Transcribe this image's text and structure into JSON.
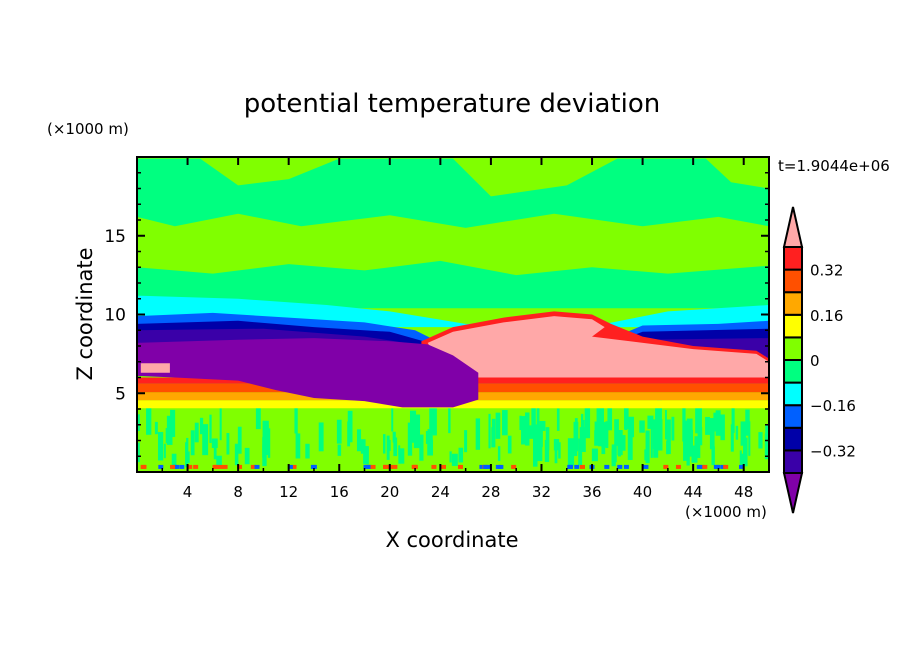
{
  "chart_data": {
    "type": "heatmap",
    "subtype": "filled-contour",
    "title": "potential temperature deviation",
    "xlabel": "X coordinate",
    "ylabel": "Z coordinate",
    "x_unit": "(×1000 m)",
    "y_unit": "(×1000 m)",
    "time_label": "t=1.9044e+06",
    "xlim": [
      0,
      50
    ],
    "ylim": [
      0,
      20
    ],
    "x_ticks": [
      4,
      8,
      12,
      16,
      20,
      24,
      28,
      32,
      36,
      40,
      44,
      48
    ],
    "x_tick_labels": [
      "4",
      "8",
      "12",
      "16",
      "20",
      "24",
      "28",
      "32",
      "36",
      "40",
      "44",
      "48"
    ],
    "y_ticks": [
      5,
      10,
      15
    ],
    "y_tick_labels": [
      "5",
      "10",
      "15"
    ],
    "colorbar": {
      "levels": [
        -0.4,
        -0.32,
        -0.24,
        -0.16,
        -0.08,
        0,
        0.08,
        0.16,
        0.24,
        0.32,
        0.4
      ],
      "colors_low_to_high": [
        "#3a00a8",
        "#0000a8",
        "#0060ff",
        "#00ffff",
        "#00ff80",
        "#80ff00",
        "#ffff00",
        "#ffa800",
        "#ff5000",
        "#ff2020"
      ],
      "under_color": "#8000a8",
      "over_color": "#ffa8a8",
      "labels": [
        {
          "value": 0.32,
          "text": "0.32"
        },
        {
          "value": 0.16,
          "text": "0.16"
        },
        {
          "value": 0,
          "text": "0"
        },
        {
          "value": -0.16,
          "text": "−0.16"
        },
        {
          "value": -0.32,
          "text": "−0.32"
        }
      ]
    },
    "background_value": 0.04,
    "regions": [
      {
        "name": "upper-green-patch",
        "value": -0.04,
        "points": [
          [
            0,
            19.9
          ],
          [
            5,
            19.9
          ],
          [
            8,
            18.2
          ],
          [
            12,
            18.6
          ],
          [
            16,
            19.9
          ],
          [
            25,
            19.9
          ],
          [
            28,
            17.5
          ],
          [
            34,
            18.2
          ],
          [
            38,
            19.9
          ],
          [
            45,
            19.9
          ],
          [
            47,
            18.4
          ],
          [
            50,
            18.0
          ],
          [
            50,
            15.6
          ],
          [
            46,
            16.2
          ],
          [
            40,
            15.6
          ],
          [
            33,
            16.4
          ],
          [
            26,
            15.5
          ],
          [
            20,
            16.3
          ],
          [
            13,
            15.6
          ],
          [
            8,
            16.4
          ],
          [
            3,
            15.6
          ],
          [
            0,
            16.2
          ]
        ]
      },
      {
        "name": "mid-green-layer",
        "value": -0.04,
        "points": [
          [
            0,
            13.0
          ],
          [
            6,
            12.6
          ],
          [
            12,
            13.2
          ],
          [
            18,
            12.8
          ],
          [
            24,
            13.4
          ],
          [
            30,
            12.5
          ],
          [
            36,
            13.0
          ],
          [
            42,
            12.6
          ],
          [
            50,
            13.1
          ],
          [
            50,
            10.4
          ],
          [
            0,
            10.4
          ]
        ]
      },
      {
        "name": "cyan-layer",
        "value": -0.12,
        "points": [
          [
            0,
            11.2
          ],
          [
            8,
            11.0
          ],
          [
            15,
            10.6
          ],
          [
            20,
            10.2
          ],
          [
            26,
            9.4
          ],
          [
            37,
            9.4
          ],
          [
            42,
            10.2
          ],
          [
            50,
            10.6
          ],
          [
            50,
            9.2
          ],
          [
            0,
            9.2
          ]
        ]
      },
      {
        "name": "blue-layer",
        "value": -0.2,
        "points": [
          [
            0,
            9.9
          ],
          [
            6,
            10.1
          ],
          [
            12,
            9.8
          ],
          [
            18,
            9.5
          ],
          [
            22,
            9.0
          ],
          [
            24,
            8.2
          ],
          [
            37,
            8.3
          ],
          [
            40,
            9.3
          ],
          [
            46,
            9.4
          ],
          [
            50,
            9.6
          ],
          [
            50,
            7.2
          ],
          [
            0,
            7.2
          ]
        ]
      },
      {
        "name": "darkblue-layer",
        "value": -0.28,
        "points": [
          [
            0,
            9.4
          ],
          [
            8,
            9.6
          ],
          [
            14,
            9.2
          ],
          [
            20,
            8.9
          ],
          [
            24,
            8.0
          ],
          [
            37,
            8.0
          ],
          [
            40,
            8.9
          ],
          [
            50,
            9.1
          ],
          [
            50,
            7.0
          ],
          [
            0,
            7.0
          ]
        ]
      },
      {
        "name": "indigo-layer",
        "value": -0.36,
        "points": [
          [
            0,
            9.0
          ],
          [
            10,
            9.1
          ],
          [
            18,
            8.6
          ],
          [
            22,
            8.1
          ],
          [
            30,
            7.6
          ],
          [
            40,
            8.4
          ],
          [
            50,
            8.5
          ],
          [
            50,
            7.0
          ],
          [
            0,
            7.0
          ]
        ]
      },
      {
        "name": "warm-yellow-band",
        "value": 0.12,
        "points": [
          [
            0,
            4.56
          ],
          [
            50,
            4.56
          ],
          [
            50,
            4.05
          ],
          [
            0,
            4.05
          ]
        ]
      },
      {
        "name": "warm-orange-band",
        "value": 0.2,
        "points": [
          [
            0,
            5.06
          ],
          [
            50,
            5.06
          ],
          [
            50,
            4.56
          ],
          [
            0,
            4.56
          ]
        ]
      },
      {
        "name": "warm-orangered-band",
        "value": 0.28,
        "points": [
          [
            0,
            5.6
          ],
          [
            50,
            5.6
          ],
          [
            50,
            5.06
          ],
          [
            0,
            5.06
          ]
        ]
      },
      {
        "name": "warm-red-band",
        "value": 0.36,
        "points": [
          [
            0,
            6.0
          ],
          [
            50,
            6.0
          ],
          [
            50,
            5.6
          ],
          [
            0,
            5.6
          ]
        ]
      },
      {
        "name": "cloud-red-rim",
        "value": 0.36,
        "points": [
          [
            22.5,
            8.3
          ],
          [
            25,
            9.2
          ],
          [
            29,
            9.8
          ],
          [
            33,
            10.2
          ],
          [
            36,
            10.0
          ],
          [
            37.5,
            9.4
          ],
          [
            40,
            8.6
          ],
          [
            44,
            8.0
          ],
          [
            49,
            7.7
          ],
          [
            50,
            7.2
          ],
          [
            50,
            6.0
          ],
          [
            23,
            6.0
          ],
          [
            22.5,
            7.5
          ]
        ]
      },
      {
        "name": "warm-cloud-anomaly",
        "value": 0.45,
        "points": [
          [
            23,
            8.2
          ],
          [
            25,
            8.9
          ],
          [
            29,
            9.5
          ],
          [
            33,
            9.9
          ],
          [
            36,
            9.7
          ],
          [
            37,
            9.2
          ],
          [
            36,
            8.6
          ],
          [
            39,
            8.3
          ],
          [
            44,
            7.8
          ],
          [
            49,
            7.5
          ],
          [
            50,
            7.0
          ],
          [
            50,
            6.0
          ],
          [
            27,
            6.0
          ],
          [
            25,
            6.6
          ],
          [
            23.5,
            7.5
          ]
        ]
      },
      {
        "name": "cold-anomaly",
        "value": -0.45,
        "points": [
          [
            0,
            6.1
          ],
          [
            3,
            6.0
          ],
          [
            8,
            5.8
          ],
          [
            11,
            5.2
          ],
          [
            14,
            4.7
          ],
          [
            18,
            4.5
          ],
          [
            21,
            4.1
          ],
          [
            25,
            4.1
          ],
          [
            27,
            4.6
          ],
          [
            27,
            6.3
          ],
          [
            25,
            7.4
          ],
          [
            23,
            8.1
          ],
          [
            20,
            8.3
          ],
          [
            14,
            8.5
          ],
          [
            8,
            8.4
          ],
          [
            0,
            8.2
          ]
        ]
      },
      {
        "name": "left-warm-patch",
        "value": 0.45,
        "points": [
          [
            0.3,
            6.3
          ],
          [
            2.6,
            6.3
          ],
          [
            2.6,
            6.9
          ],
          [
            0.3,
            6.9
          ]
        ]
      }
    ]
  }
}
